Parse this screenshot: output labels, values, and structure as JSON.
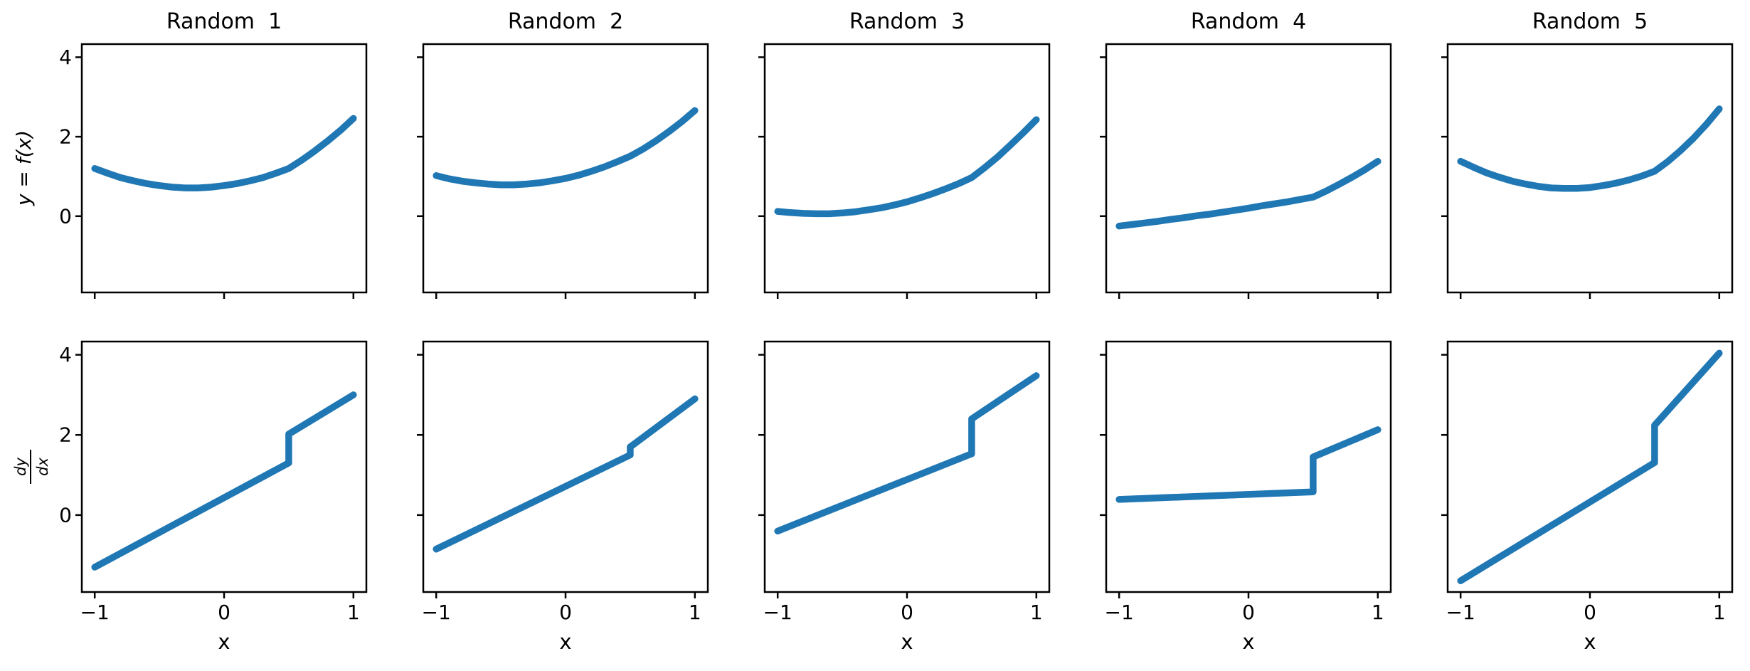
{
  "figure": {
    "background": "#ffffff",
    "text_color": "#000000",
    "axis_color": "#000000",
    "line_color": "#1f77b4",
    "grid": "off",
    "legend": "none",
    "xlabel": "x",
    "ylabel_row1": "y = f(x)",
    "ylabel_row2_numerator": "dy",
    "ylabel_row2_denominator": "dx",
    "xlim": [
      -1.1,
      1.1
    ],
    "ylim": [
      -1.92,
      4.33
    ],
    "xticks": [
      -1,
      0,
      1
    ],
    "xtick_labels": [
      "−1",
      "0",
      "1"
    ],
    "yticks": [
      4,
      2,
      0
    ],
    "ytick_labels": [
      "4",
      "2",
      "0"
    ],
    "titles": [
      "Random  1",
      "Random  2",
      "Random  3",
      "Random  4",
      "Random  5"
    ]
  },
  "chart_data": [
    {
      "name": "random-1-f",
      "type": "line",
      "row": 0,
      "col": 0,
      "title": "Random  1",
      "ylabel": "y = f(x)",
      "x": [
        -1,
        -0.9,
        -0.8,
        -0.7,
        -0.6,
        -0.5,
        -0.4,
        -0.3,
        -0.2,
        -0.1,
        0,
        0.1,
        0.2,
        0.3,
        0.4,
        0.5,
        0.6,
        0.7,
        0.8,
        0.9,
        1
      ],
      "y": [
        1.2,
        1.08,
        0.97,
        0.89,
        0.82,
        0.77,
        0.73,
        0.71,
        0.71,
        0.73,
        0.77,
        0.82,
        0.89,
        0.97,
        1.08,
        1.2,
        1.41,
        1.64,
        1.89,
        2.16,
        2.46
      ]
    },
    {
      "name": "random-2-f",
      "type": "line",
      "row": 0,
      "col": 1,
      "title": "Random  2",
      "ylabel": "y = f(x)",
      "x": [
        -1,
        -0.9,
        -0.8,
        -0.7,
        -0.6,
        -0.5,
        -0.4,
        -0.3,
        -0.2,
        -0.1,
        0,
        0.1,
        0.2,
        0.3,
        0.4,
        0.5,
        0.6,
        0.7,
        0.8,
        0.9,
        1
      ],
      "y": [
        1.02,
        0.94,
        0.88,
        0.84,
        0.81,
        0.79,
        0.79,
        0.81,
        0.84,
        0.89,
        0.95,
        1.03,
        1.13,
        1.24,
        1.37,
        1.51,
        1.69,
        1.9,
        2.13,
        2.38,
        2.66
      ]
    },
    {
      "name": "random-3-f",
      "type": "line",
      "row": 0,
      "col": 2,
      "title": "Random  3",
      "ylabel": "y = f(x)",
      "x": [
        -1,
        -0.9,
        -0.8,
        -0.7,
        -0.6,
        -0.5,
        -0.4,
        -0.3,
        -0.2,
        -0.1,
        0,
        0.1,
        0.2,
        0.3,
        0.4,
        0.5,
        0.6,
        0.7,
        0.8,
        0.9,
        1
      ],
      "y": [
        0.12,
        0.09,
        0.07,
        0.06,
        0.06,
        0.08,
        0.11,
        0.16,
        0.21,
        0.28,
        0.36,
        0.46,
        0.57,
        0.69,
        0.82,
        0.97,
        1.22,
        1.49,
        1.79,
        2.1,
        2.43
      ]
    },
    {
      "name": "random-4-f",
      "type": "line",
      "row": 0,
      "col": 3,
      "title": "Random  4",
      "ylabel": "y = f(x)",
      "x": [
        -1,
        -0.9,
        -0.8,
        -0.7,
        -0.6,
        -0.5,
        -0.4,
        -0.3,
        -0.2,
        -0.1,
        0,
        0.1,
        0.2,
        0.3,
        0.4,
        0.5,
        0.6,
        0.7,
        0.8,
        0.9,
        1
      ],
      "y": [
        -0.25,
        -0.21,
        -0.17,
        -0.13,
        -0.08,
        -0.04,
        0.01,
        0.05,
        0.1,
        0.15,
        0.2,
        0.26,
        0.31,
        0.36,
        0.42,
        0.48,
        0.63,
        0.8,
        0.98,
        1.17,
        1.38
      ]
    },
    {
      "name": "random-5-f",
      "type": "line",
      "row": 0,
      "col": 4,
      "title": "Random  5",
      "ylabel": "y = f(x)",
      "x": [
        -1,
        -0.9,
        -0.8,
        -0.7,
        -0.6,
        -0.5,
        -0.4,
        -0.3,
        -0.2,
        -0.1,
        0,
        0.1,
        0.2,
        0.3,
        0.4,
        0.5,
        0.6,
        0.7,
        0.8,
        0.9,
        1
      ],
      "y": [
        1.38,
        1.23,
        1.09,
        0.98,
        0.88,
        0.81,
        0.75,
        0.71,
        0.7,
        0.7,
        0.72,
        0.77,
        0.83,
        0.91,
        1.01,
        1.13,
        1.37,
        1.65,
        1.96,
        2.31,
        2.7
      ]
    },
    {
      "name": "random-1-derivative",
      "type": "line",
      "row": 1,
      "col": 0,
      "title": "",
      "ylabel": "dy/dx",
      "xlabel": "x",
      "x": [
        -1,
        0.5,
        0.5,
        1
      ],
      "y": [
        -1.3,
        1.3,
        2.02,
        3.0
      ]
    },
    {
      "name": "random-2-derivative",
      "type": "line",
      "row": 1,
      "col": 1,
      "title": "",
      "ylabel": "dy/dx",
      "xlabel": "x",
      "x": [
        -1,
        0.5,
        0.5,
        1
      ],
      "y": [
        -0.85,
        1.5,
        1.7,
        2.9
      ]
    },
    {
      "name": "random-3-derivative",
      "type": "line",
      "row": 1,
      "col": 2,
      "title": "",
      "ylabel": "dy/dx",
      "xlabel": "x",
      "x": [
        -1,
        0.5,
        0.5,
        1
      ],
      "y": [
        -0.4,
        1.53,
        2.4,
        3.48
      ]
    },
    {
      "name": "random-4-derivative",
      "type": "line",
      "row": 1,
      "col": 3,
      "title": "",
      "ylabel": "dy/dx",
      "xlabel": "x",
      "x": [
        -1,
        0.5,
        0.5,
        1
      ],
      "y": [
        0.39,
        0.58,
        1.45,
        2.13
      ]
    },
    {
      "name": "random-5-derivative",
      "type": "line",
      "row": 1,
      "col": 4,
      "title": "",
      "ylabel": "dy/dx",
      "xlabel": "x",
      "x": [
        -1,
        0.5,
        0.5,
        1
      ],
      "y": [
        -1.64,
        1.31,
        2.24,
        4.04
      ]
    }
  ]
}
